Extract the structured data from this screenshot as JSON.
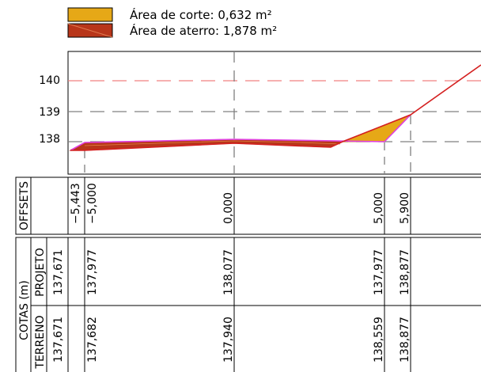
{
  "legend": {
    "cut": {
      "label": "Área de corte: 0,632 m²",
      "color": "#e6a817"
    },
    "fill": {
      "label": "Área de aterro: 1,878 m²",
      "color": "#b8361a"
    }
  },
  "elevation_labels": [
    "140",
    "139",
    "138"
  ],
  "offsets": {
    "header": "OFFSETS",
    "values": [
      "−5,443",
      "−5,000",
      "0,000",
      "5,000",
      "5,900"
    ]
  },
  "cotas": {
    "header": "COTAS (m)",
    "projeto": {
      "label": "PROJETO",
      "values": [
        "137,671",
        "137,977",
        "138,077",
        "137,977",
        "138,877"
      ]
    },
    "terreno": {
      "label": "TERRENO",
      "values": [
        "137,671",
        "137,682",
        "137,940",
        "138,559",
        "138,877"
      ]
    }
  },
  "colors": {
    "frame": "#000000",
    "dashed_red": "#f08080",
    "dashed_gray": "#808080",
    "terrain_line": "#d42020",
    "design_line": "#e040e0"
  }
}
